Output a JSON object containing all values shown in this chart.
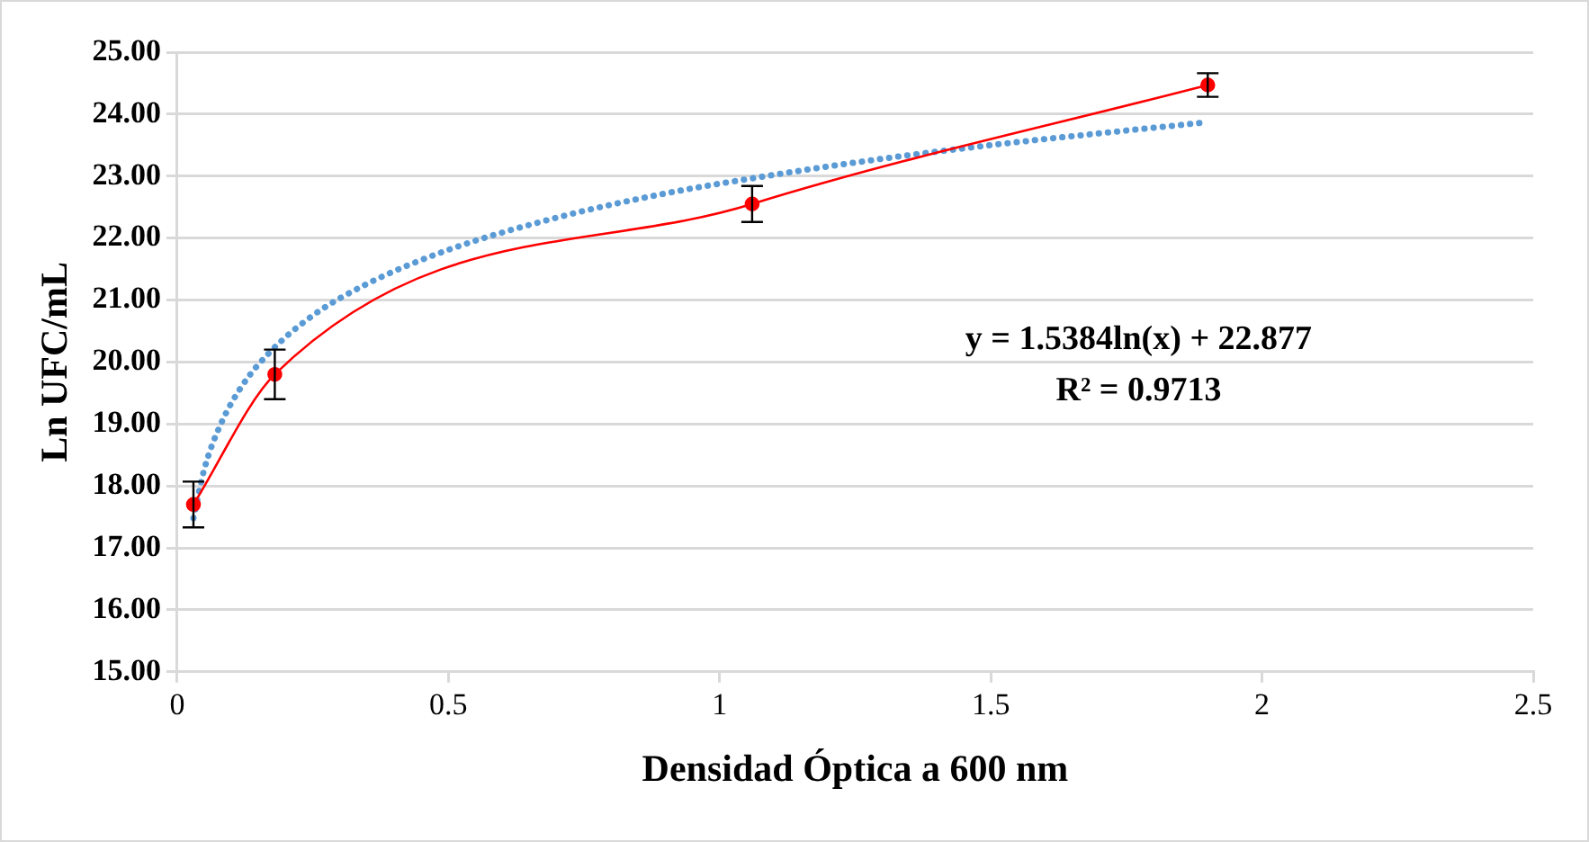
{
  "chart_data": {
    "type": "scatter",
    "xlabel": "Densidad Óptica a 600 nm",
    "ylabel": "Ln UFC/mL",
    "xlim": [
      0,
      2.5
    ],
    "xticks": [
      0,
      0.5,
      1,
      1.5,
      2,
      2.5
    ],
    "ylim": [
      15,
      25
    ],
    "yticks": [
      {
        "value": 15,
        "label": "15.00"
      },
      {
        "value": 16,
        "label": "16.00"
      },
      {
        "value": 17,
        "label": "17.00"
      },
      {
        "value": 18,
        "label": "18.00"
      },
      {
        "value": 19,
        "label": "19.00"
      },
      {
        "value": 20,
        "label": "20.00"
      },
      {
        "value": 21,
        "label": "21.00"
      },
      {
        "value": 22,
        "label": "22.00"
      },
      {
        "value": 23,
        "label": "23.00"
      },
      {
        "value": 24,
        "label": "24.00"
      },
      {
        "value": 25,
        "label": "25.00"
      }
    ],
    "grid": "y",
    "legend": false,
    "series": [
      {
        "type": "line",
        "color": "#ff0000",
        "marker": "circle",
        "line_style": "solid",
        "x": [
          0.03,
          0.18,
          1.06,
          1.9
        ],
        "values": [
          17.7,
          19.8,
          22.55,
          24.47
        ],
        "errors": [
          0.37,
          0.4,
          0.29,
          0.19
        ]
      },
      {
        "type": "line",
        "color": "#5b9bd5",
        "marker": "none",
        "line_style": "dotted",
        "x": [
          0.03,
          0.05,
          0.08,
          0.12,
          0.17,
          0.25,
          0.35,
          0.5,
          0.7,
          0.9,
          1.1,
          1.3,
          1.5,
          1.7,
          1.9
        ],
        "values": [
          17.48,
          18.27,
          18.99,
          19.62,
          20.15,
          20.75,
          21.26,
          21.81,
          22.33,
          22.72,
          23.02,
          23.28,
          23.5,
          23.69,
          23.87
        ]
      }
    ],
    "annotations": [
      "y = 1.5384ln(x) + 22.877",
      "R² = 0.9713"
    ]
  }
}
